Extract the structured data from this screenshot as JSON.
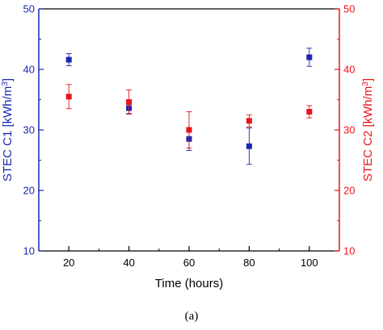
{
  "chart_data": {
    "type": "scatter",
    "xlabel": "Time (hours)",
    "xlim": [
      10,
      110
    ],
    "xticks": [
      20,
      40,
      60,
      80,
      100
    ],
    "y_left": {
      "label": "STEC C1 [kWh/m³]",
      "label_parts": [
        "STEC C1 [kWh/m",
        "3",
        "]"
      ],
      "lim": [
        10,
        50
      ],
      "ticks": [
        10,
        20,
        30,
        40,
        50
      ],
      "color": "#1a25b0"
    },
    "y_right": {
      "label": "STEC C2 [kWh/m³]",
      "label_parts": [
        "STEC C2 [kWh/m",
        "3",
        "]"
      ],
      "lim": [
        10,
        50
      ],
      "ticks": [
        10,
        20,
        30,
        40,
        50
      ],
      "color": "#e8141b"
    },
    "series": [
      {
        "axis": "left",
        "color": "#1a25b0",
        "points": [
          {
            "x": 20,
            "y": 41.6,
            "err": 1.0
          },
          {
            "x": 40,
            "y": 33.6,
            "err": 0.9
          },
          {
            "x": 60,
            "y": 28.5,
            "err": 1.9
          },
          {
            "x": 80,
            "y": 27.3,
            "err": 3.0
          },
          {
            "x": 100,
            "y": 42.0,
            "err": 1.5
          }
        ]
      },
      {
        "axis": "right",
        "color": "#e8141b",
        "points": [
          {
            "x": 20,
            "y": 35.5,
            "err": 2.0
          },
          {
            "x": 40,
            "y": 34.6,
            "err": 2.0
          },
          {
            "x": 60,
            "y": 30.0,
            "err": 3.0
          },
          {
            "x": 80,
            "y": 31.5,
            "err": 1.0
          },
          {
            "x": 100,
            "y": 33.0,
            "err": 1.0
          }
        ]
      }
    ]
  },
  "caption": "(a)"
}
